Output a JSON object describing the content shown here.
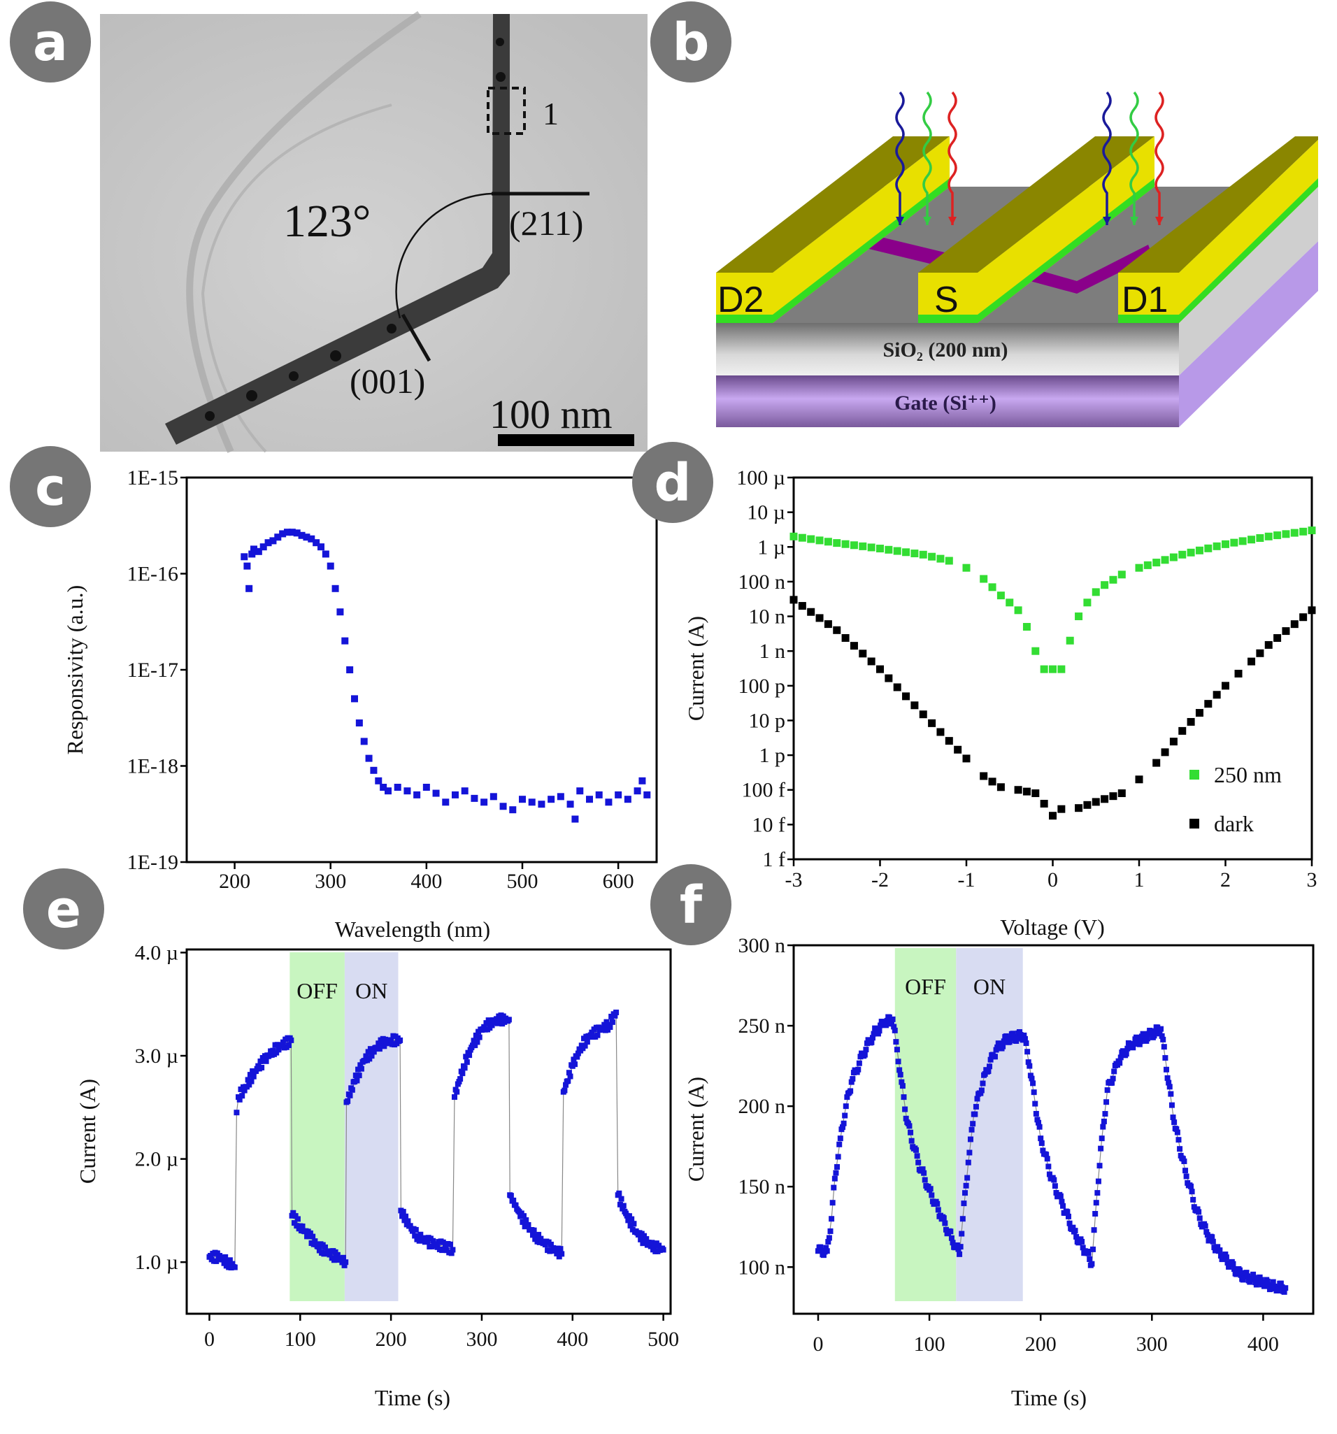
{
  "panels": {
    "a": {
      "label": "a",
      "angle": "123°",
      "plane_top": "(211)",
      "plane_bottom": "(001)",
      "region_marker": "1",
      "scale_bar": "100 nm"
    },
    "b": {
      "label": "b",
      "drain2": "D2",
      "source": "S",
      "drain1": "D1",
      "oxide": "SiO₂ (200 nm)",
      "gate": "Gate (Si⁺⁺)",
      "colors": {
        "electrode_top": "#8a8600",
        "electrode_side": "#e8e000",
        "contact": "#33dd22",
        "nanowire": "#8a008a",
        "substrate": "#b899e8"
      }
    },
    "c": {
      "label": "c"
    },
    "d": {
      "label": "d"
    },
    "e": {
      "label": "e"
    },
    "f": {
      "label": "f"
    }
  },
  "chart_data": [
    {
      "panel": "c",
      "type": "scatter",
      "title": "",
      "xlabel": "Wavelength (nm)",
      "ylabel": "Responsivity (a.u.)",
      "xlim": [
        150,
        640
      ],
      "ylim": [
        1e-19,
        1e-15
      ],
      "yscale": "log",
      "xticks": [
        200,
        300,
        400,
        500,
        600
      ],
      "xtick_labels": [
        "200",
        "300",
        "400",
        "500",
        "600"
      ],
      "yticks": [
        1e-19,
        1e-18,
        1e-17,
        1e-16,
        1e-15
      ],
      "ytick_labels": [
        "1E-19",
        "1E-18",
        "1E-17",
        "1E-16",
        "1E-15"
      ],
      "series": [
        {
          "name": "responsivity",
          "color": "#1414d8",
          "x": [
            210,
            213,
            215,
            218,
            220,
            225,
            230,
            235,
            240,
            245,
            250,
            255,
            260,
            265,
            270,
            275,
            280,
            285,
            290,
            295,
            300,
            305,
            310,
            315,
            320,
            325,
            330,
            335,
            340,
            345,
            350,
            355,
            360,
            370,
            380,
            390,
            400,
            410,
            420,
            430,
            440,
            450,
            460,
            470,
            480,
            490,
            500,
            510,
            520,
            530,
            540,
            550,
            555,
            560,
            570,
            580,
            590,
            600,
            610,
            620,
            625,
            630
          ],
          "y": [
            1.5e-16,
            1.2e-16,
            7e-17,
            1.6e-16,
            1.8e-16,
            1.7e-16,
            1.9e-16,
            2.1e-16,
            2.2e-16,
            2.4e-16,
            2.6e-16,
            2.7e-16,
            2.7e-16,
            2.65e-16,
            2.5e-16,
            2.4e-16,
            2.3e-16,
            2.1e-16,
            1.9e-16,
            1.6e-16,
            1.2e-16,
            7e-17,
            4e-17,
            2e-17,
            1e-17,
            5e-18,
            2.8e-18,
            1.8e-18,
            1.2e-18,
            9e-19,
            7e-19,
            6e-19,
            5.5e-19,
            6e-19,
            5.5e-19,
            5e-19,
            6e-19,
            5.2e-19,
            4.2e-19,
            5e-19,
            5.5e-19,
            4.6e-19,
            4.2e-19,
            4.8e-19,
            3.8e-19,
            3.5e-19,
            4.5e-19,
            4.2e-19,
            4e-19,
            4.5e-19,
            4.8e-19,
            4e-19,
            2.8e-19,
            5.5e-19,
            4.5e-19,
            5e-19,
            4.2e-19,
            5e-19,
            4.5e-19,
            5.5e-19,
            7e-19,
            5e-19
          ]
        }
      ]
    },
    {
      "panel": "d",
      "type": "scatter",
      "title": "",
      "xlabel": "Voltage (V)",
      "ylabel": "Current (A)",
      "xlim": [
        -3,
        3
      ],
      "ylim": [
        1e-15,
        0.0001
      ],
      "yscale": "log",
      "xticks": [
        -3,
        -2,
        -1,
        0,
        1,
        2,
        3
      ],
      "xtick_labels": [
        "-3",
        "-2",
        "-1",
        "0",
        "1",
        "2",
        "3"
      ],
      "yticks": [
        1e-15,
        1e-14,
        1e-13,
        1e-12,
        1e-11,
        1e-10,
        1e-09,
        1e-08,
        1e-07,
        1e-06,
        1e-05,
        0.0001
      ],
      "ytick_labels": [
        "1 f",
        "10 f",
        "100 f",
        "1 p",
        "10 p",
        "100 p",
        "1 n",
        "10 n",
        "100 n",
        "1 µ",
        "10 µ",
        "100 µ"
      ],
      "legend": {
        "position": "bottom-right",
        "entries": [
          "250 nm",
          "dark"
        ]
      },
      "series": [
        {
          "name": "250 nm",
          "color": "#33dd33",
          "x": [
            -3,
            -2.5,
            -2,
            -1.5,
            -1.2,
            -1,
            -0.8,
            -0.6,
            -0.5,
            -0.4,
            -0.3,
            -0.2,
            -0.1,
            0.1,
            0.2,
            0.3,
            0.4,
            0.5,
            0.6,
            0.8,
            1,
            1.5,
            2,
            2.5,
            3
          ],
          "y": [
            2e-06,
            1.3e-06,
            9e-07,
            6e-07,
            4e-07,
            2.5e-07,
            1.2e-07,
            4e-08,
            2.5e-08,
            1.5e-08,
            5e-09,
            1e-09,
            3e-10,
            3e-10,
            2e-09,
            1e-08,
            2.5e-08,
            5e-08,
            8e-08,
            1.6e-07,
            2.5e-07,
            6e-07,
            1.2e-06,
            2e-06,
            3e-06
          ]
        },
        {
          "name": "dark",
          "color": "#000000",
          "x": [
            -3,
            -2.5,
            -2,
            -1.5,
            -1,
            -0.8,
            -0.6,
            -0.4,
            -0.2,
            -0.1,
            0,
            0.1,
            0.3,
            0.5,
            0.8,
            1,
            1.2,
            1.5,
            2,
            2.3,
            2.5,
            3
          ],
          "y": [
            3e-08,
            4e-09,
            3e-10,
            1.5e-11,
            8e-13,
            2.5e-13,
            1.2e-13,
            1e-13,
            8e-14,
            4e-14,
            1.8e-14,
            2.8e-14,
            3e-14,
            4.5e-14,
            8e-14,
            2e-13,
            6e-13,
            5e-12,
            1e-10,
            5e-10,
            1.5e-09,
            1.5e-08
          ]
        }
      ]
    },
    {
      "panel": "e",
      "type": "line",
      "title": "",
      "xlabel": "Time (s)",
      "ylabel": "Current (A)",
      "xlim": [
        -25,
        508
      ],
      "ylim": [
        0.5,
        4.03
      ],
      "yunit": "µA",
      "xticks": [
        0,
        100,
        200,
        300,
        400,
        500
      ],
      "xtick_labels": [
        "0",
        "100",
        "200",
        "300",
        "400",
        "500"
      ],
      "yticks": [
        1,
        2,
        3,
        4
      ],
      "ytick_labels": [
        "1.0 µ",
        "2.0 µ",
        "3.0 µ",
        "4.0 µ"
      ],
      "shaded_regions": [
        {
          "x": [
            88.5,
            149
          ],
          "color": "#c8f5c0",
          "label": "OFF"
        },
        {
          "x": [
            149,
            208
          ],
          "color": "#d8dcf2",
          "label": "ON"
        }
      ],
      "series": [
        {
          "name": "photocurrent",
          "color": "#1414d8",
          "x": [
            0,
            10,
            20,
            28,
            30,
            32,
            40,
            50,
            60,
            70,
            80,
            90,
            91,
            100,
            110,
            120,
            130,
            140,
            150,
            151,
            160,
            170,
            180,
            190,
            200,
            210,
            211,
            220,
            230,
            240,
            250,
            260,
            268,
            270,
            280,
            290,
            300,
            310,
            320,
            330,
            331,
            340,
            350,
            360,
            370,
            380,
            388,
            390,
            400,
            410,
            420,
            430,
            440,
            448,
            450,
            460,
            470,
            480,
            490,
            500
          ],
          "y": [
            1.05,
            1.05,
            1.0,
            0.95,
            2.45,
            2.6,
            2.7,
            2.85,
            2.95,
            3.05,
            3.1,
            3.15,
            1.45,
            1.35,
            1.25,
            1.15,
            1.1,
            1.05,
            1.0,
            2.55,
            2.75,
            2.95,
            3.05,
            3.12,
            3.15,
            3.15,
            1.5,
            1.35,
            1.25,
            1.2,
            1.17,
            1.15,
            1.12,
            2.6,
            2.9,
            3.1,
            3.25,
            3.32,
            3.35,
            3.35,
            1.65,
            1.5,
            1.35,
            1.25,
            1.17,
            1.12,
            1.08,
            2.65,
            2.9,
            3.1,
            3.2,
            3.25,
            3.3,
            3.42,
            1.65,
            1.45,
            1.3,
            1.2,
            1.15,
            1.12
          ]
        }
      ]
    },
    {
      "panel": "f",
      "type": "line",
      "title": "",
      "xlabel": "Time (s)",
      "ylabel": "Current (A)",
      "xlim": [
        -22,
        445
      ],
      "ylim": [
        71,
        300
      ],
      "yunit": "nA",
      "xticks": [
        0,
        100,
        200,
        300,
        400
      ],
      "xtick_labels": [
        "0",
        "100",
        "200",
        "300",
        "400"
      ],
      "yticks": [
        100,
        150,
        200,
        250,
        300
      ],
      "ytick_labels": [
        "100 n",
        "150 n",
        "200 n",
        "250 n",
        "300 n"
      ],
      "shaded_regions": [
        {
          "x": [
            69,
            124
          ],
          "color": "#c8f5c0",
          "label": "OFF"
        },
        {
          "x": [
            124,
            184
          ],
          "color": "#d8dcf2",
          "label": "ON"
        }
      ],
      "series": [
        {
          "name": "photocurrent",
          "color": "#1414d8",
          "x": [
            0,
            8,
            12,
            15,
            20,
            25,
            30,
            40,
            50,
            60,
            67,
            70,
            75,
            80,
            90,
            100,
            110,
            120,
            127,
            130,
            135,
            140,
            150,
            160,
            170,
            185,
            190,
            200,
            210,
            220,
            230,
            240,
            246,
            250,
            255,
            260,
            270,
            280,
            300,
            308,
            312,
            320,
            330,
            340,
            350,
            360,
            370,
            380,
            390,
            400,
            410,
            420
          ],
          "y": [
            110,
            110,
            130,
            155,
            180,
            200,
            215,
            232,
            245,
            252,
            254,
            240,
            215,
            190,
            165,
            148,
            132,
            118,
            108,
            130,
            165,
            195,
            220,
            235,
            242,
            244,
            225,
            180,
            155,
            138,
            122,
            110,
            102,
            140,
            180,
            210,
            228,
            238,
            245,
            248,
            230,
            190,
            160,
            135,
            120,
            110,
            102,
            95,
            93,
            90,
            88,
            87
          ]
        }
      ]
    }
  ]
}
